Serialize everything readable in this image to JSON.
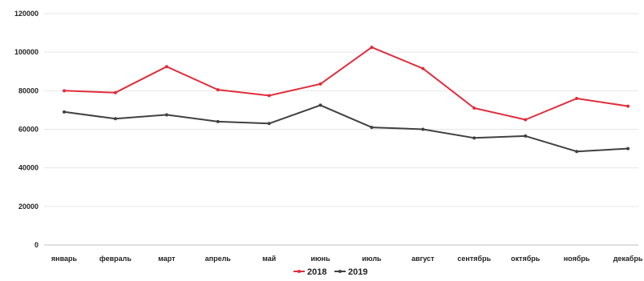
{
  "chart_data": {
    "type": "line",
    "title": "",
    "xlabel": "",
    "ylabel": "",
    "categories": [
      "январь",
      "февраль",
      "март",
      "апрель",
      "май",
      "июнь",
      "июль",
      "август",
      "сентябрь",
      "октябрь",
      "ноябрь",
      "декабрь"
    ],
    "ylim": [
      0,
      120000
    ],
    "yticks": [
      "0",
      "20000",
      "40000",
      "60000",
      "80000",
      "100000",
      "120000"
    ],
    "grid": true,
    "legend_position": "bottom",
    "series": [
      {
        "name": "2018",
        "color": "#e02d3c",
        "values": [
          80000,
          79000,
          92500,
          80500,
          77500,
          83500,
          102500,
          91500,
          71000,
          65000,
          76000,
          72000
        ]
      },
      {
        "name": "2019",
        "color": "#404040",
        "values": [
          69000,
          65500,
          67500,
          64000,
          63000,
          72500,
          61000,
          60000,
          55500,
          56500,
          48500,
          50000
        ]
      }
    ]
  }
}
